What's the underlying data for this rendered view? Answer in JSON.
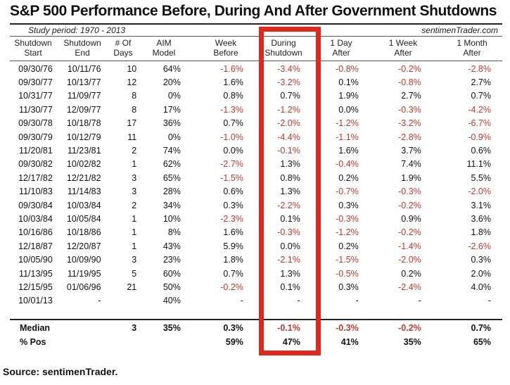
{
  "title": "S&P 500 Performance Before, During And After Government Shutdowns",
  "study_period": "Study period:  1970 - 2013",
  "brand": "sentimenTrader.com",
  "footer": "Source:  sentimenTrader.",
  "chart_data": {
    "type": "table",
    "columns": [
      [
        "Shutdown",
        "Start"
      ],
      [
        "Shutdown",
        "End"
      ],
      [
        "# Of",
        "Days"
      ],
      [
        "AIM",
        "Model"
      ],
      [
        "Week",
        "Before"
      ],
      [
        "During",
        "Shutdown"
      ],
      [
        "1 Day",
        "After"
      ],
      [
        "1 Week",
        "After"
      ],
      [
        "1 Month",
        "After"
      ]
    ],
    "rows": [
      [
        "09/30/76",
        "10/11/76",
        "10",
        "64%",
        "-1.6%",
        "-3.4%",
        "-0.8%",
        "-0.2%",
        "-2.8%"
      ],
      [
        "09/30/77",
        "10/13/77",
        "12",
        "20%",
        "1.6%",
        "-3.2%",
        "0.1%",
        "-0.8%",
        "2.7%"
      ],
      [
        "10/31/77",
        "11/09/77",
        "8",
        "0%",
        "0.8%",
        "0.7%",
        "1.9%",
        "2.7%",
        "0.7%"
      ],
      [
        "11/30/77",
        "12/09/77",
        "8",
        "17%",
        "-1.3%",
        "-1.2%",
        "0.0%",
        "-0.3%",
        "-4.2%"
      ],
      [
        "09/30/78",
        "10/18/78",
        "17",
        "36%",
        "0.7%",
        "-2.0%",
        "-1.2%",
        "-3.2%",
        "-6.7%"
      ],
      [
        "09/30/79",
        "10/12/79",
        "11",
        "0%",
        "-1.0%",
        "-4.4%",
        "-1.1%",
        "-2.8%",
        "-0.9%"
      ],
      [
        "11/20/81",
        "11/23/81",
        "2",
        "74%",
        "0.0%",
        "-0.1%",
        "1.6%",
        "3.7%",
        "0.6%"
      ],
      [
        "09/30/82",
        "10/02/82",
        "1",
        "62%",
        "-2.7%",
        "1.3%",
        "-0.4%",
        "7.4%",
        "11.1%"
      ],
      [
        "12/17/82",
        "12/21/82",
        "3",
        "65%",
        "-1.5%",
        "0.8%",
        "0.2%",
        "1.9%",
        "5.5%"
      ],
      [
        "11/10/83",
        "11/14/83",
        "3",
        "28%",
        "0.6%",
        "1.3%",
        "-0.7%",
        "-0.3%",
        "-2.0%"
      ],
      [
        "09/30/84",
        "10/03/84",
        "2",
        "34%",
        "0.3%",
        "-2.2%",
        "0.3%",
        "-0.2%",
        "3.1%"
      ],
      [
        "10/03/84",
        "10/05/84",
        "1",
        "10%",
        "-2.3%",
        "0.1%",
        "-0.3%",
        "0.9%",
        "3.6%"
      ],
      [
        "10/16/86",
        "10/18/86",
        "1",
        "8%",
        "1.6%",
        "-0.3%",
        "-1.2%",
        "-0.2%",
        "1.8%"
      ],
      [
        "12/18/87",
        "12/20/87",
        "1",
        "43%",
        "5.9%",
        "0.0%",
        "0.2%",
        "-1.4%",
        "-2.6%"
      ],
      [
        "10/05/90",
        "10/09/90",
        "3",
        "23%",
        "1.8%",
        "-2.1%",
        "-1.5%",
        "-2.0%",
        "0.3%"
      ],
      [
        "11/13/95",
        "11/19/95",
        "5",
        "60%",
        "0.7%",
        "1.3%",
        "-0.5%",
        "0.2%",
        "2.0%"
      ],
      [
        "12/15/95",
        "01/06/96",
        "21",
        "50%",
        "-0.2%",
        "0.1%",
        "0.3%",
        "-2.4%",
        "4.0%"
      ],
      [
        "10/01/13",
        "-",
        "",
        "40%",
        "-",
        "-",
        "-",
        "-",
        "-"
      ]
    ],
    "summary": [
      [
        "Median",
        "",
        "3",
        "35%",
        "0.3%",
        "-0.1%",
        "-0.3%",
        "-0.2%",
        "0.7%"
      ],
      [
        "% Pos",
        "",
        "",
        "",
        "59%",
        "47%",
        "41%",
        "35%",
        "65%"
      ]
    ],
    "highlighted_column": "During Shutdown",
    "negative_color": "#c0392b",
    "highlight_color": "#e3271b"
  }
}
